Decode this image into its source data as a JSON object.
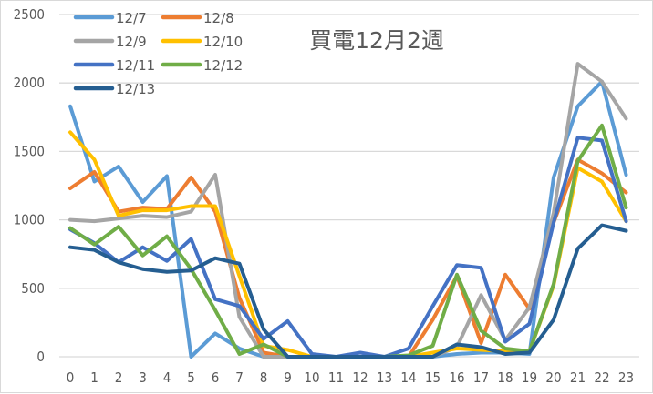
{
  "chart_data": {
    "type": "line",
    "title": "買電12月2週",
    "xlabel": "",
    "ylabel": "",
    "ylim": [
      0,
      2500
    ],
    "yticks": [
      0,
      500,
      1000,
      1500,
      2000,
      2500
    ],
    "grid": true,
    "legend_position": "top-left (inside)",
    "categories": [
      "0",
      "1",
      "2",
      "3",
      "4",
      "5",
      "6",
      "7",
      "8",
      "9",
      "10",
      "11",
      "12",
      "13",
      "14",
      "15",
      "16",
      "17",
      "18",
      "19",
      "20",
      "21",
      "22",
      "23"
    ],
    "series": [
      {
        "name": "12/7",
        "color": "#5b9bd5",
        "values": [
          1830,
          1280,
          1390,
          1130,
          1320,
          0,
          170,
          60,
          0,
          0,
          0,
          0,
          0,
          0,
          0,
          0,
          20,
          30,
          30,
          20,
          1310,
          1830,
          2010,
          1330
        ]
      },
      {
        "name": "12/8",
        "color": "#ed7d31",
        "values": [
          1230,
          1350,
          1060,
          1090,
          1080,
          1310,
          1060,
          430,
          30,
          0,
          0,
          0,
          0,
          0,
          0,
          270,
          590,
          100,
          600,
          350,
          980,
          1440,
          1340,
          1200
        ]
      },
      {
        "name": "12/9",
        "color": "#a5a5a5",
        "values": [
          1000,
          990,
          1010,
          1030,
          1020,
          1060,
          1330,
          290,
          0,
          0,
          0,
          0,
          0,
          0,
          0,
          0,
          70,
          450,
          120,
          360,
          1050,
          2140,
          2010,
          1740
        ]
      },
      {
        "name": "12/10",
        "color": "#ffc000",
        "values": [
          1640,
          1440,
          1030,
          1070,
          1070,
          1100,
          1100,
          590,
          80,
          50,
          0,
          0,
          0,
          0,
          0,
          30,
          60,
          50,
          40,
          40,
          520,
          1380,
          1280,
          990
        ]
      },
      {
        "name": "12/11",
        "color": "#4472c4",
        "values": [
          930,
          830,
          690,
          800,
          700,
          860,
          420,
          370,
          130,
          260,
          20,
          0,
          30,
          0,
          60,
          370,
          670,
          650,
          110,
          240,
          980,
          1600,
          1580,
          990
        ]
      },
      {
        "name": "12/12",
        "color": "#70ad47",
        "values": [
          940,
          820,
          950,
          740,
          880,
          640,
          340,
          20,
          90,
          0,
          0,
          0,
          0,
          0,
          10,
          80,
          600,
          190,
          60,
          40,
          530,
          1430,
          1690,
          1090
        ]
      },
      {
        "name": "12/13",
        "color": "#255e91",
        "values": [
          800,
          780,
          690,
          640,
          620,
          630,
          720,
          680,
          200,
          0,
          0,
          0,
          0,
          0,
          0,
          0,
          90,
          70,
          20,
          30,
          270,
          790,
          960,
          920
        ]
      }
    ]
  },
  "legend": {
    "items": [
      "12/7",
      "12/8",
      "12/9",
      "12/10",
      "12/11",
      "12/12",
      "12/13"
    ]
  }
}
